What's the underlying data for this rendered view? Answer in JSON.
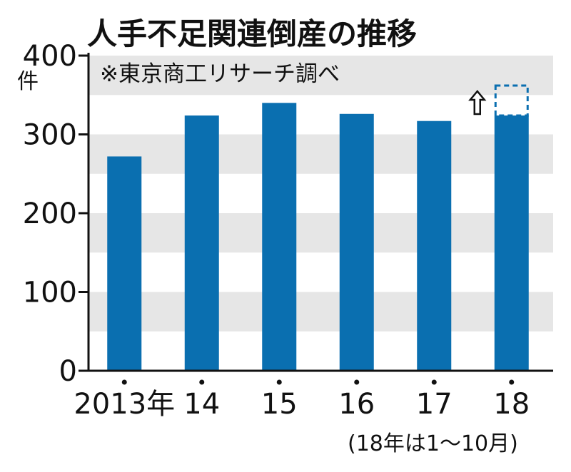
{
  "chart_data": {
    "type": "bar",
    "title": "人手不足関連倒産の推移",
    "source_note": "※東京商工リサーチ調べ",
    "ylabel": "件",
    "ylim": [
      0,
      400
    ],
    "yticks": [
      0,
      100,
      200,
      300,
      400
    ],
    "ytick_labels": [
      "0",
      "100",
      "200",
      "300",
      "400"
    ],
    "grid_bands": true,
    "categories": [
      "2013年",
      "14",
      "15",
      "16",
      "17",
      "18"
    ],
    "values": [
      272,
      324,
      340,
      326,
      317,
      324
    ],
    "partial_period": {
      "category": "18",
      "note": "(18年は1〜10月)",
      "projected_value": 362,
      "style": "dashed outline with up arrow"
    },
    "colors": {
      "bar": "#0a6fb0",
      "band": "#e6e6e6",
      "axis": "#111111"
    }
  }
}
